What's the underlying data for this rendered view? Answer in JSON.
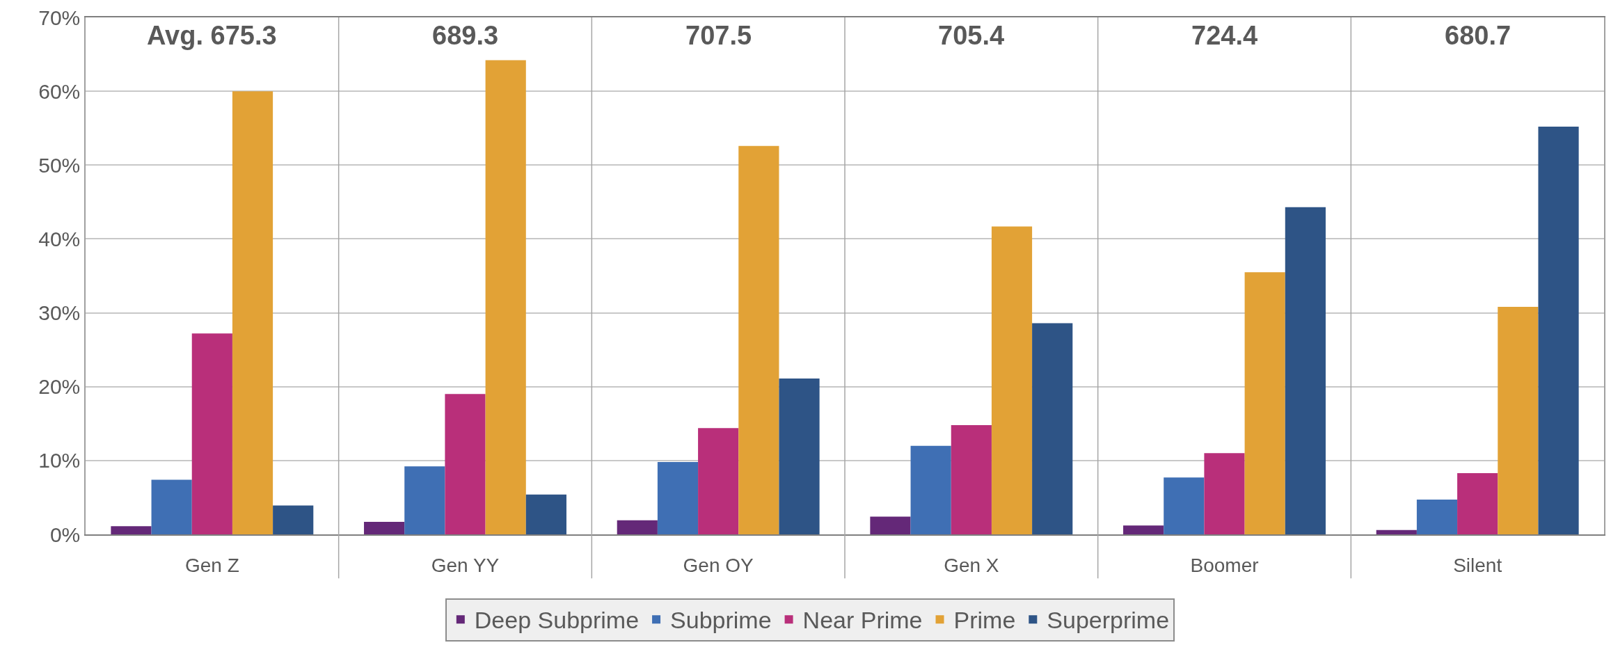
{
  "chart_data": {
    "type": "bar",
    "categories": [
      "Gen Z",
      "Gen YY",
      "Gen OY",
      "Gen X",
      "Boomer",
      "Silent"
    ],
    "series": [
      {
        "name": "Deep Subprime",
        "color": "#642878",
        "values": [
          1.1,
          1.7,
          1.9,
          2.4,
          1.2,
          0.6
        ]
      },
      {
        "name": "Subprime",
        "color": "#3f6fb4",
        "values": [
          7.4,
          9.2,
          9.8,
          12.0,
          7.7,
          4.7
        ]
      },
      {
        "name": "Near Prime",
        "color": "#b92f7a",
        "values": [
          27.2,
          19.0,
          14.4,
          14.8,
          11.0,
          8.3
        ]
      },
      {
        "name": "Prime",
        "color": "#e2a236",
        "values": [
          60.0,
          64.2,
          52.6,
          41.7,
          35.5,
          30.8
        ]
      },
      {
        "name": "Superprime",
        "color": "#2e5486",
        "values": [
          3.9,
          5.4,
          21.1,
          28.6,
          44.3,
          55.2
        ]
      }
    ],
    "annotations": [
      "Avg. 675.3",
      "689.3",
      "707.5",
      "705.4",
      "724.4",
      "680.7"
    ],
    "ylim": [
      0,
      70
    ],
    "yticks": [
      {
        "value": 0,
        "label": "0%"
      },
      {
        "value": 10,
        "label": "10%"
      },
      {
        "value": 20,
        "label": "20%"
      },
      {
        "value": 30,
        "label": "30%"
      },
      {
        "value": 40,
        "label": "40%"
      },
      {
        "value": 50,
        "label": "50%"
      },
      {
        "value": 60,
        "label": "60%"
      },
      {
        "value": 70,
        "label": "70%"
      }
    ],
    "grid": "y",
    "legend": "bottom"
  }
}
